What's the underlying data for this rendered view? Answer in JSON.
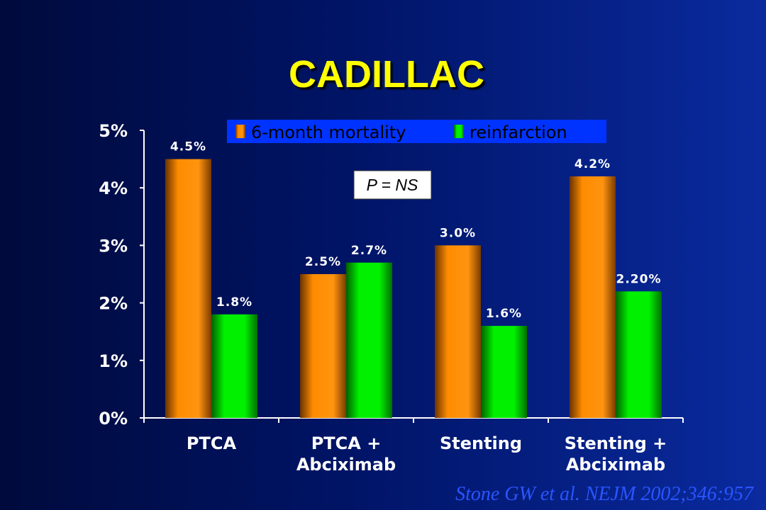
{
  "slide": {
    "title": "CADILLAC",
    "citation": "Stone GW et al. NEJM 2002;346:957"
  },
  "chart_data": {
    "type": "bar",
    "categories": [
      [
        "PTCA"
      ],
      [
        "PTCA +",
        "Abciximab"
      ],
      [
        "Stenting"
      ],
      [
        "Stenting +",
        "Abciximab"
      ]
    ],
    "series": [
      {
        "name": "6-month mortality",
        "values": [
          4.5,
          2.5,
          3.0,
          4.2
        ],
        "labels": [
          "4.5%",
          "2.5%",
          "3.0%",
          "4.2%"
        ],
        "color": "#ff8c00"
      },
      {
        "name": "reinfarction",
        "values": [
          1.8,
          2.7,
          1.6,
          2.2
        ],
        "labels": [
          "1.8%",
          "2.7%",
          "1.6%",
          "2.20%"
        ],
        "color": "#00e000"
      }
    ],
    "yticks": [
      "0%",
      "1%",
      "2%",
      "3%",
      "4%",
      "5%"
    ],
    "ylim": [
      0,
      5
    ],
    "annotation": "P = NS",
    "legend_position": "top",
    "grid": false,
    "xlabel": "",
    "ylabel": ""
  },
  "colors": {
    "axis": "#ffffff",
    "title": "#ffff00",
    "citation": "#2a55ff",
    "legend_bg": "#0033ff",
    "annotation_bg": "#ffffff"
  }
}
